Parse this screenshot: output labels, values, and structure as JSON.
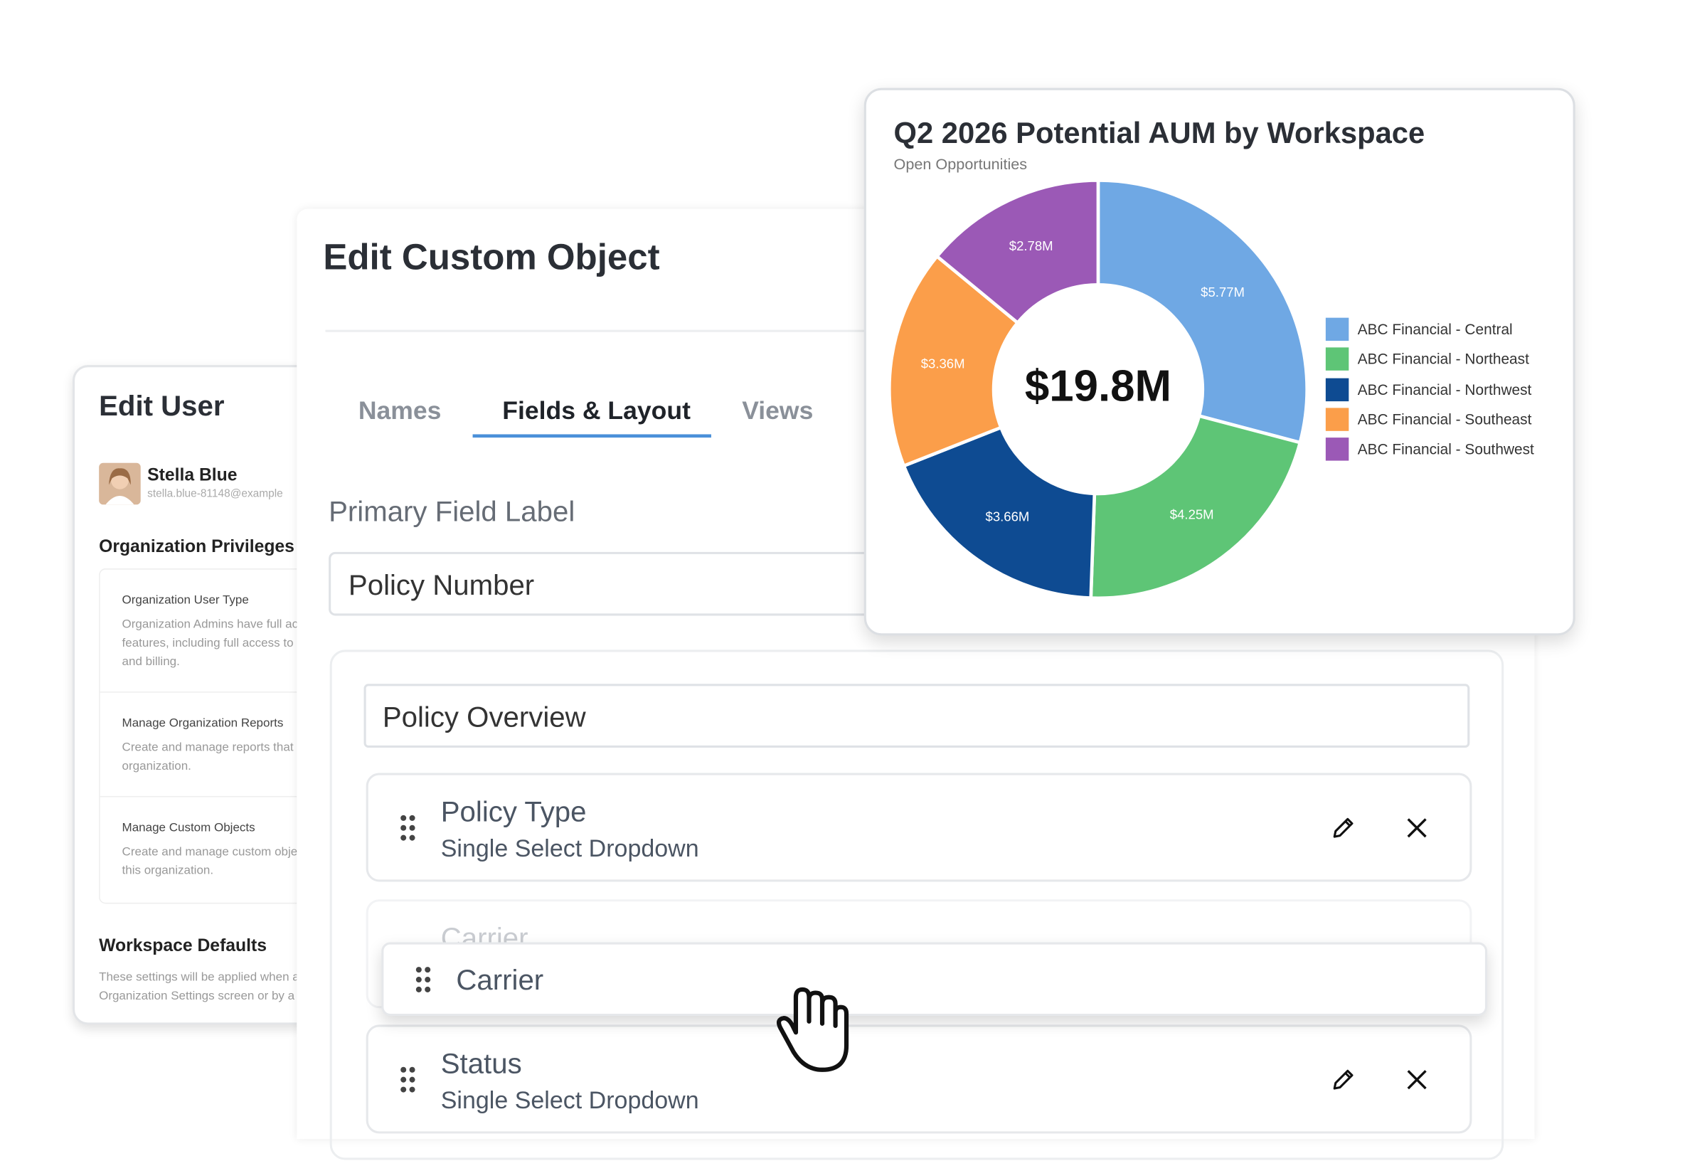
{
  "edit_user": {
    "title": "Edit User",
    "user_name": "Stella Blue",
    "user_email": "stella.blue-81148@example",
    "privileges_title": "Organization Privileges",
    "privileges": [
      {
        "title": "Organization User Type",
        "lines": [
          "Organization Admins have full ac",
          "features, including full access to",
          "and billing."
        ]
      },
      {
        "title": "Manage Organization Reports",
        "lines": [
          "Create and manage reports that",
          "organization."
        ]
      },
      {
        "title": "Manage Custom Objects",
        "lines": [
          "Create and manage custom obje",
          "this organization."
        ]
      }
    ],
    "defaults_title": "Workspace Defaults",
    "defaults_lines": [
      "These settings will be applied when a",
      "Organization Settings screen or by a"
    ]
  },
  "custom_object": {
    "title": "Edit Custom Object",
    "tabs": [
      "Names",
      "Fields & Layout",
      "Views"
    ],
    "primary_field_label": "Primary Field Label",
    "primary_field_value": "Policy Number",
    "section_name": "Policy Overview",
    "fields": [
      {
        "name": "Policy Type",
        "type": "Single Select Dropdown"
      },
      {
        "name": "Carrier"
      },
      {
        "name": "Status",
        "type": "Single Select Dropdown"
      }
    ],
    "dragged_field": "Carrier"
  },
  "chart_data": {
    "type": "donut",
    "title": "Q2 2026 Potential AUM by Workspace",
    "subtitle": "Open Opportunities",
    "center_label": "$19.8M",
    "categories": [
      "ABC Financial - Central",
      "ABC Financial - Northeast",
      "ABC Financial - Northwest",
      "ABC Financial - Southeast",
      "ABC Financial - Southwest"
    ],
    "values": [
      5.77,
      4.25,
      3.66,
      3.36,
      2.78
    ],
    "value_labels": [
      "$5.77M",
      "$4.25M",
      "$3.66M",
      "$3.36M",
      "$2.78M"
    ],
    "colors": [
      "#6fa8e4",
      "#5ec576",
      "#0e4b92",
      "#fb9e4a",
      "#9b59b6"
    ],
    "legend": "right"
  }
}
